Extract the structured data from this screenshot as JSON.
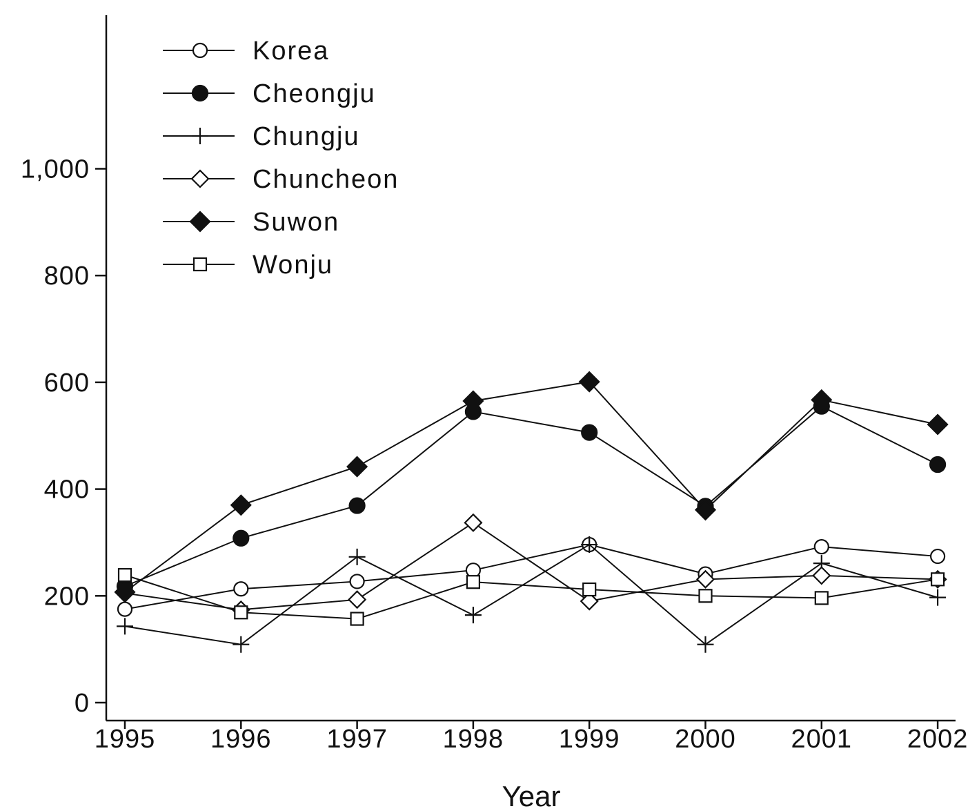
{
  "chart_data": {
    "type": "line",
    "title": "",
    "xlabel": "Year",
    "ylabel": "",
    "x": [
      "1995",
      "1996",
      "1997",
      "1998",
      "1999",
      "2000",
      "2001",
      "2002"
    ],
    "ylim": [
      0,
      1000
    ],
    "yticks": [
      0,
      200,
      400,
      600,
      800,
      1000
    ],
    "ytick_labels": [
      "0",
      "200",
      "400",
      "600",
      "800",
      "1,000"
    ],
    "grid": false,
    "legend_position": "top-left",
    "series": [
      {
        "name": "Korea",
        "marker": "open-circle",
        "values": [
          175,
          213,
          227,
          248,
          296,
          241,
          292,
          274
        ]
      },
      {
        "name": "Cheongju",
        "marker": "filled-circle",
        "values": [
          218,
          308,
          369,
          545,
          506,
          368,
          555,
          446
        ]
      },
      {
        "name": "Chungju",
        "marker": "plus",
        "values": [
          143,
          109,
          273,
          164,
          296,
          109,
          261,
          197
        ]
      },
      {
        "name": "Chuncheon",
        "marker": "open-diamond",
        "values": [
          205,
          174,
          193,
          337,
          190,
          231,
          238,
          231
        ]
      },
      {
        "name": "Suwon",
        "marker": "filled-diamond",
        "values": [
          207,
          370,
          442,
          565,
          601,
          361,
          567,
          521
        ]
      },
      {
        "name": "Wonju",
        "marker": "open-square",
        "values": [
          239,
          169,
          157,
          226,
          212,
          200,
          196,
          231
        ]
      }
    ]
  }
}
